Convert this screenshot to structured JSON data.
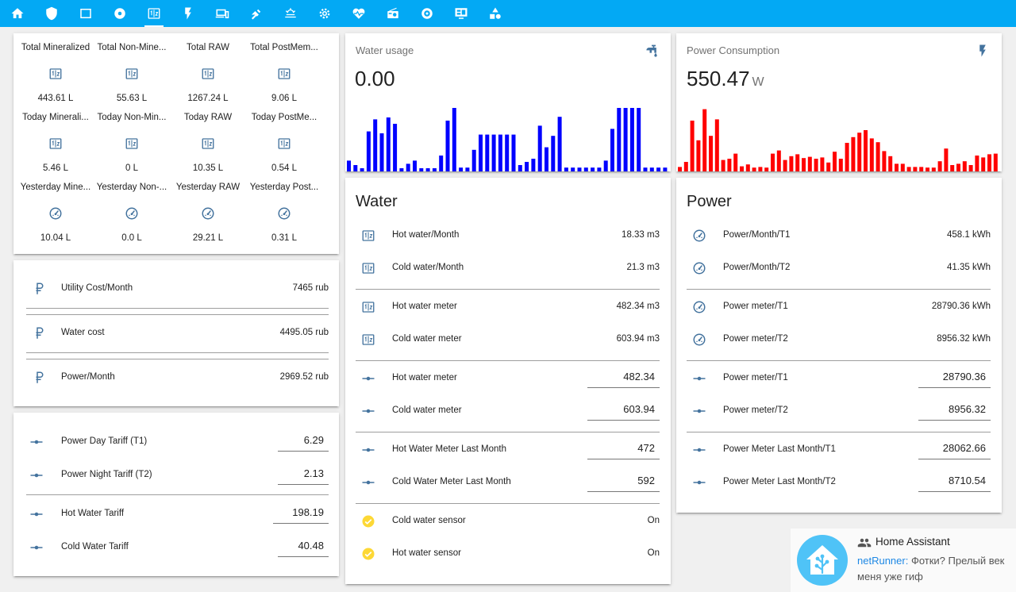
{
  "nav": {
    "tabs": [
      {
        "icon": "home-icon"
      },
      {
        "icon": "shield-icon"
      },
      {
        "icon": "square-icon"
      },
      {
        "icon": "disc-icon"
      },
      {
        "icon": "counter-icon",
        "active": true
      },
      {
        "icon": "flash-icon"
      },
      {
        "icon": "devices-icon"
      },
      {
        "icon": "satellite-icon"
      },
      {
        "icon": "weather-sunset-icon"
      },
      {
        "icon": "settings-icon"
      },
      {
        "icon": "heart-pulse-icon"
      },
      {
        "icon": "radio-icon"
      },
      {
        "icon": "speedometer-tab-icon"
      },
      {
        "icon": "monitor-dashboard-icon"
      },
      {
        "icon": "shapes-icon"
      }
    ]
  },
  "glance": {
    "rows": [
      [
        {
          "name": "Total Mineralized",
          "value": "443.61 L",
          "icon": "counter-icon"
        },
        {
          "name": "Total Non-Mine...",
          "value": "55.63 L",
          "icon": "counter-icon"
        },
        {
          "name": "Total RAW",
          "value": "1267.24 L",
          "icon": "counter-icon"
        },
        {
          "name": "Total PostMem...",
          "value": "9.06 L",
          "icon": "counter-icon"
        }
      ],
      [
        {
          "name": "Today Minerali...",
          "value": "5.46 L",
          "icon": "counter-icon"
        },
        {
          "name": "Today Non-Min...",
          "value": "0 L",
          "icon": "counter-icon"
        },
        {
          "name": "Today RAW",
          "value": "10.35 L",
          "icon": "counter-icon"
        },
        {
          "name": "Today PostMe...",
          "value": "0.54 L",
          "icon": "counter-icon"
        }
      ],
      [
        {
          "name": "Yesterday Mine...",
          "value": "10.04 L",
          "icon": "gauge-icon"
        },
        {
          "name": "Yesterday Non-...",
          "value": "0.0 L",
          "icon": "gauge-icon"
        },
        {
          "name": "Yesterday RAW",
          "value": "29.21 L",
          "icon": "gauge-icon"
        },
        {
          "name": "Yesterday Post...",
          "value": "0.31 L",
          "icon": "gauge-icon"
        }
      ]
    ]
  },
  "costs": {
    "rows": [
      {
        "label": "Utility Cost/Month",
        "value": "7465 rub"
      },
      {
        "label": "Water cost",
        "value": "4495.05 rub"
      },
      {
        "label": "Power/Month",
        "value": "2969.52 rub"
      }
    ]
  },
  "tariffs": {
    "rows": [
      {
        "label": "Power Day Tariff (T1)",
        "value": "6.29"
      },
      {
        "label": "Power Night Tariff (T2)",
        "value": "2.13"
      },
      {
        "label": "Hot Water Tariff",
        "value": "198.19"
      },
      {
        "label": "Cold Water Tariff",
        "value": "40.48"
      }
    ]
  },
  "water_usage": {
    "name": "Water usage",
    "value": "0.00",
    "unit": "",
    "color": "#0000ff",
    "bars": [
      0.17,
      0.1,
      0.05,
      0.63,
      0.82,
      0.6,
      0.85,
      0.75,
      0.05,
      0.12,
      0.17,
      0.05,
      0.05,
      0.05,
      0.25,
      0.8,
      1.0,
      0.06,
      0.06,
      0.34,
      0.58,
      0.58,
      0.58,
      0.58,
      0.58,
      0.58,
      0.1,
      0.15,
      0.2,
      0.72,
      0.38,
      0.56,
      0.86,
      0.06,
      0.06,
      0.06,
      0.06,
      0.06,
      0.06,
      0.17,
      0.67,
      1.0,
      1.0,
      1.0,
      1.0,
      0.06,
      0.06,
      0.06,
      0.06
    ]
  },
  "power_consumption": {
    "name": "Power Consumption",
    "value": "550.47",
    "unit": "W",
    "color": "#ff0000",
    "bars": [
      0.07,
      0.15,
      0.8,
      0.49,
      0.98,
      0.56,
      0.82,
      0.18,
      0.2,
      0.28,
      0.08,
      0.11,
      0.06,
      0.07,
      0.06,
      0.28,
      0.33,
      0.18,
      0.24,
      0.27,
      0.21,
      0.23,
      0.2,
      0.22,
      0.14,
      0.31,
      0.2,
      0.45,
      0.54,
      0.61,
      0.65,
      0.52,
      0.46,
      0.32,
      0.24,
      0.12,
      0.12,
      0.07,
      0.07,
      0.07,
      0.06,
      0.06,
      0.16,
      0.36,
      0.1,
      0.12,
      0.16,
      0.1,
      0.25,
      0.22,
      0.27,
      0.28
    ]
  },
  "water": {
    "title": "Water",
    "groups": [
      [
        {
          "label": "Hot water/Month",
          "value": "18.33 m3",
          "icon": "counter-icon",
          "kind": "text"
        },
        {
          "label": "Cold water/Month",
          "value": "21.3 m3",
          "icon": "counter-icon",
          "kind": "text"
        }
      ],
      [
        {
          "label": "Hot water meter",
          "value": "482.34 m3",
          "icon": "counter-icon",
          "kind": "text"
        },
        {
          "label": "Cold water meter",
          "value": "603.94 m3",
          "icon": "counter-icon",
          "kind": "text"
        }
      ],
      [
        {
          "label": "Hot water meter",
          "value": "482.34",
          "icon": "ray-vertex-icon",
          "kind": "input"
        },
        {
          "label": "Cold water meter",
          "value": "603.94",
          "icon": "ray-vertex-icon",
          "kind": "input"
        }
      ],
      [
        {
          "label": "Hot Water Meter Last Month",
          "value": "472",
          "icon": "ray-vertex-icon",
          "kind": "input"
        },
        {
          "label": "Cold Water Meter Last Month",
          "value": "592",
          "icon": "ray-vertex-icon",
          "kind": "input"
        }
      ],
      [
        {
          "label": "Cold water sensor",
          "value": "On",
          "icon": "check-circle-icon",
          "kind": "text"
        },
        {
          "label": "Hot water sensor",
          "value": "On",
          "icon": "check-circle-icon",
          "kind": "text"
        }
      ]
    ]
  },
  "power": {
    "title": "Power",
    "groups": [
      [
        {
          "label": "Power/Month/T1",
          "value": "458.1 kWh",
          "icon": "gauge-icon",
          "kind": "text"
        },
        {
          "label": "Power/Month/T2",
          "value": "41.35 kWh",
          "icon": "gauge-icon",
          "kind": "text"
        }
      ],
      [
        {
          "label": "Power meter/T1",
          "value": "28790.36 kWh",
          "icon": "gauge-icon",
          "kind": "text"
        },
        {
          "label": "Power meter/T2",
          "value": "8956.32 kWh",
          "icon": "gauge-icon",
          "kind": "text"
        }
      ],
      [
        {
          "label": "Power meter/T1",
          "value": "28790.36",
          "icon": "ray-vertex-icon",
          "kind": "input"
        },
        {
          "label": "Power meter/T2",
          "value": "8956.32",
          "icon": "ray-vertex-icon",
          "kind": "input"
        }
      ],
      [
        {
          "label": "Power Meter Last Month/T1",
          "value": "28062.66",
          "icon": "ray-vertex-icon",
          "kind": "input"
        },
        {
          "label": "Power Meter Last Month/T2",
          "value": "8710.54",
          "icon": "ray-vertex-icon",
          "kind": "input"
        }
      ]
    ]
  },
  "notification": {
    "title": "Home Assistant",
    "sender": "netRunner:",
    "message": " Фотки? Прелый век меня уже гиф"
  },
  "colors": {
    "accent": "#03a9f4",
    "icon": "#44739e",
    "check": "#fdd835"
  }
}
